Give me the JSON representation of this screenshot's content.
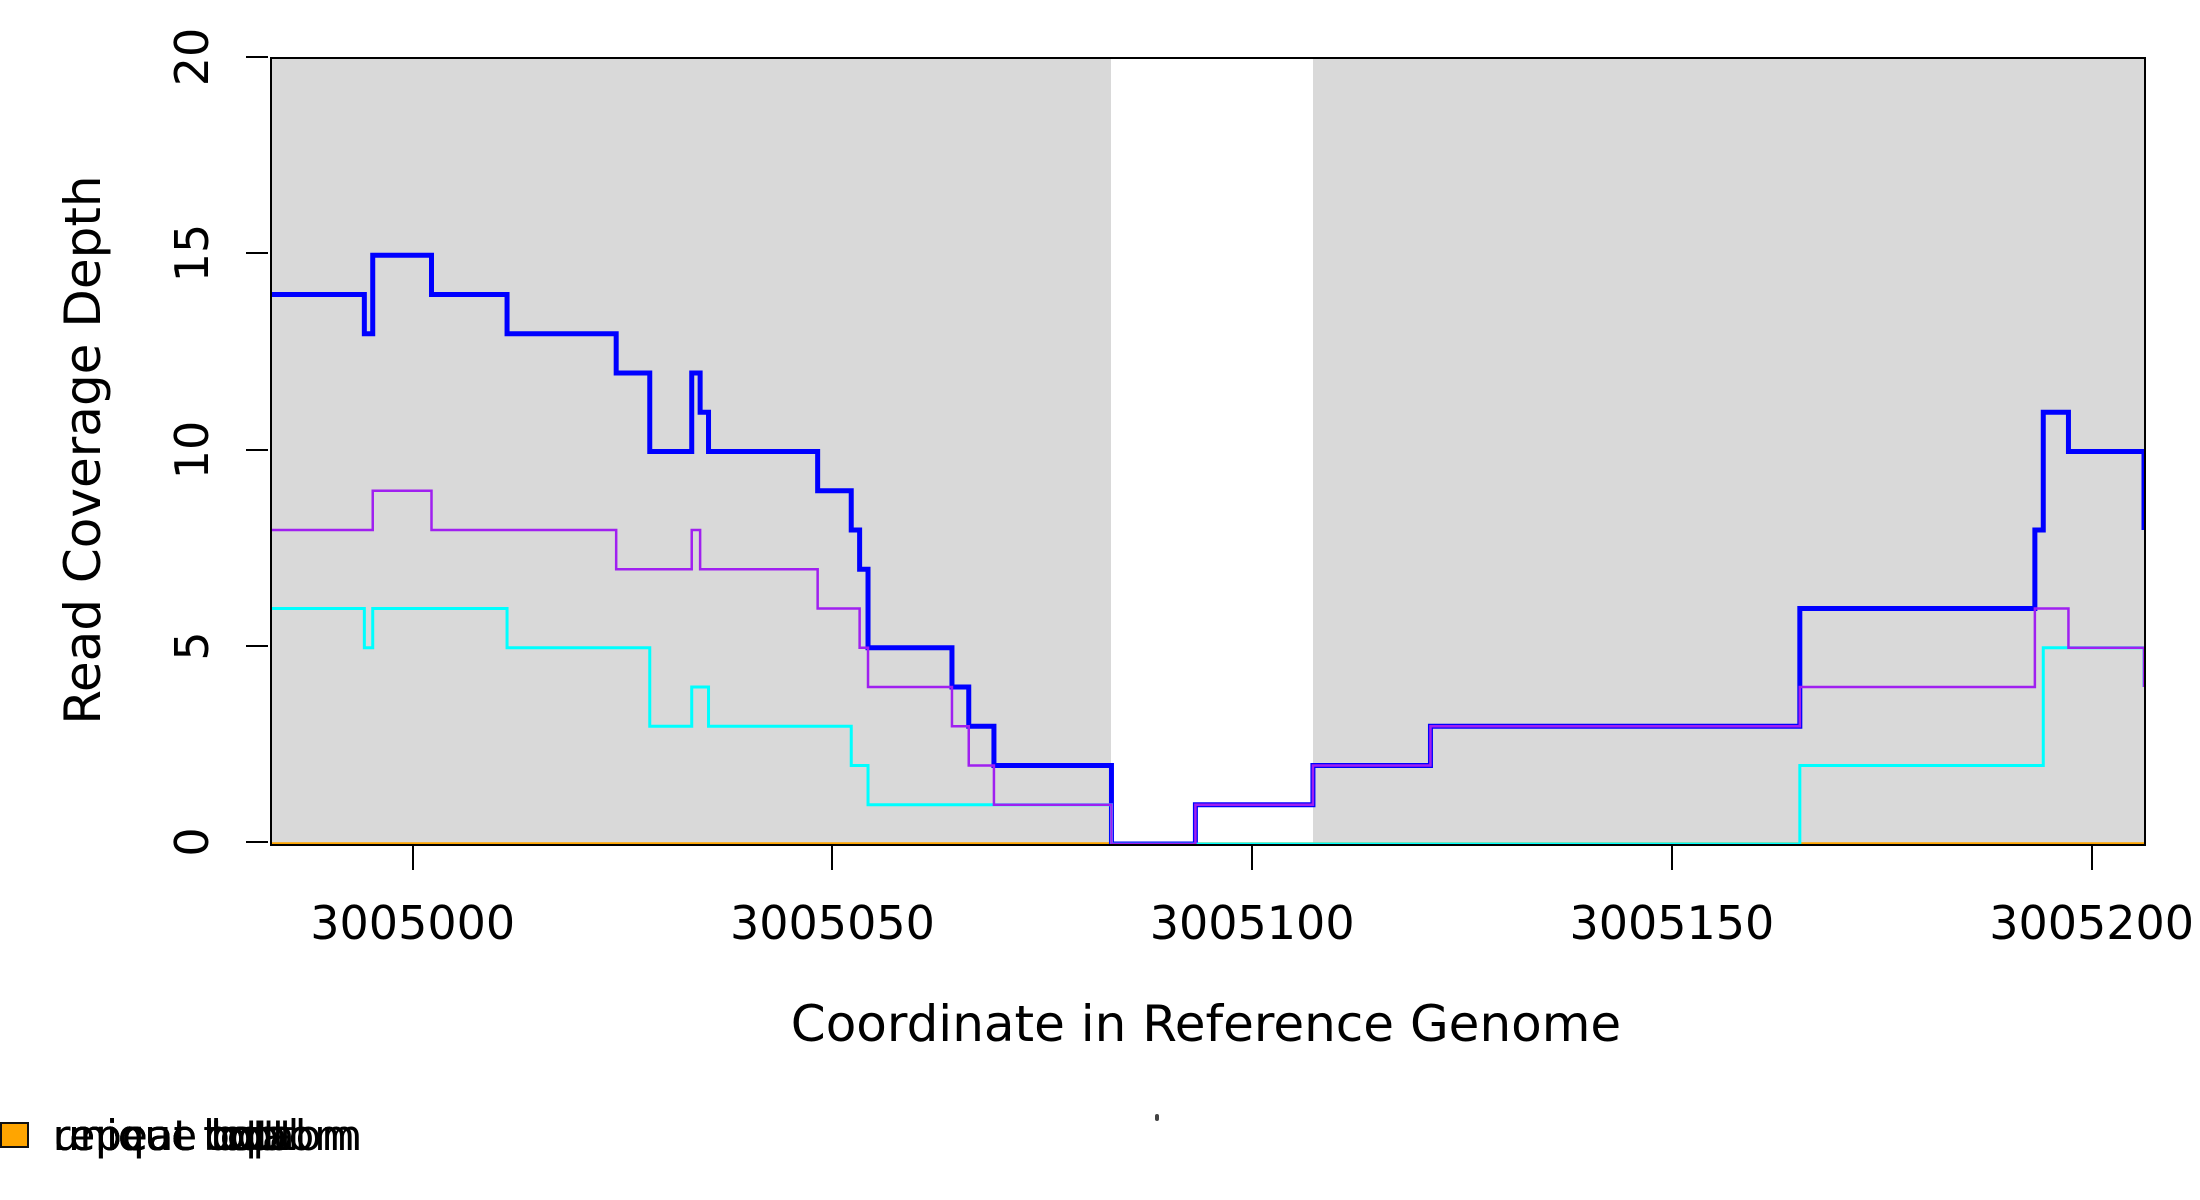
{
  "chart_data": {
    "type": "line",
    "subtype": "step",
    "title": "",
    "xlabel": "Coordinate in Reference Genome",
    "ylabel": "Read Coverage Depth",
    "xlim": [
      3004983,
      3005206
    ],
    "ylim": [
      0,
      20
    ],
    "xticks": [
      3005000,
      3005050,
      3005100,
      3005150,
      3005200
    ],
    "yticks": [
      0,
      5,
      10,
      15,
      20
    ],
    "grid": "off",
    "legend_position": "bottom",
    "panel_background": "#d9d9d9",
    "figure_background": "#ffffff",
    "axis_color": "#000000",
    "gap_region": {
      "x_start": 3005083,
      "x_end": 3005107,
      "color": "#ffffff"
    },
    "series": [
      {
        "name": "unique total",
        "color": "#0000ff",
        "line_width": 5,
        "steps": [
          [
            3004983,
            14
          ],
          [
            3004994,
            13
          ],
          [
            3004995,
            15
          ],
          [
            3005002,
            14
          ],
          [
            3005011,
            13
          ],
          [
            3005024,
            12
          ],
          [
            3005028,
            10
          ],
          [
            3005033,
            12
          ],
          [
            3005034,
            11
          ],
          [
            3005035,
            10
          ],
          [
            3005048,
            9
          ],
          [
            3005052,
            8
          ],
          [
            3005053,
            7
          ],
          [
            3005054,
            5
          ],
          [
            3005064,
            4
          ],
          [
            3005066,
            3
          ],
          [
            3005069,
            2
          ],
          [
            3005083,
            0
          ],
          [
            3005093,
            1
          ],
          [
            3005107,
            2
          ],
          [
            3005121,
            3
          ],
          [
            3005165,
            6
          ],
          [
            3005193,
            8
          ],
          [
            3005194,
            11
          ],
          [
            3005197,
            10
          ],
          [
            3005206,
            8
          ]
        ]
      },
      {
        "name": "unique top",
        "color": "#00ffff",
        "line_width": 3,
        "steps": [
          [
            3004983,
            6
          ],
          [
            3004994,
            5
          ],
          [
            3004995,
            6
          ],
          [
            3005011,
            5
          ],
          [
            3005028,
            3
          ],
          [
            3005033,
            4
          ],
          [
            3005035,
            3
          ],
          [
            3005052,
            2
          ],
          [
            3005054,
            1
          ],
          [
            3005083,
            0
          ],
          [
            3005165,
            2
          ],
          [
            3005194,
            5
          ],
          [
            3005206,
            4
          ]
        ]
      },
      {
        "name": "unique bottom",
        "color": "#a020f0",
        "line_width": 2.5,
        "steps": [
          [
            3004983,
            8
          ],
          [
            3004995,
            9
          ],
          [
            3005002,
            8
          ],
          [
            3005024,
            7
          ],
          [
            3005033,
            8
          ],
          [
            3005034,
            7
          ],
          [
            3005048,
            6
          ],
          [
            3005053,
            5
          ],
          [
            3005054,
            4
          ],
          [
            3005064,
            3
          ],
          [
            3005066,
            2
          ],
          [
            3005069,
            1
          ],
          [
            3005083,
            0
          ],
          [
            3005093,
            1
          ],
          [
            3005107,
            2
          ],
          [
            3005121,
            3
          ],
          [
            3005165,
            4
          ],
          [
            3005193,
            6
          ],
          [
            3005197,
            5
          ],
          [
            3005206,
            4
          ]
        ]
      },
      {
        "name": "repeat total",
        "color": "#ff0000",
        "line_width": 2.5,
        "steps": [
          [
            3004983,
            0
          ],
          [
            3005206,
            0
          ]
        ]
      },
      {
        "name": "repeat top",
        "color": "#ffff00",
        "line_width": 2.5,
        "steps": [
          [
            3004983,
            0
          ],
          [
            3005206,
            0
          ]
        ]
      },
      {
        "name": "repeat bottom",
        "color": "#ffa500",
        "line_width": 3.5,
        "steps": [
          [
            3004983,
            0
          ],
          [
            3005206,
            0
          ]
        ]
      }
    ],
    "draw_order": [
      3,
      4,
      5,
      0,
      1,
      2
    ]
  }
}
